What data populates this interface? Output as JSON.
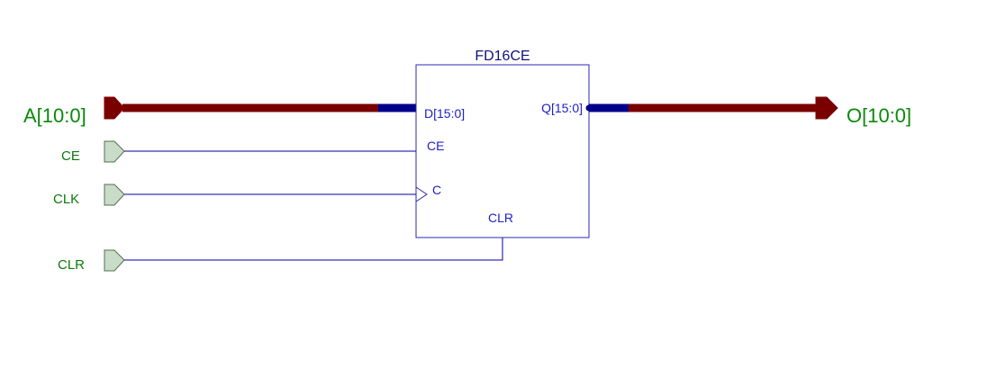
{
  "component": {
    "name": "FD16CE",
    "pins": {
      "d": "D[15:0]",
      "ce": "CE",
      "c": "C",
      "clr": "CLR",
      "q": "Q[15:0]"
    }
  },
  "inputs": {
    "a_bus": "A[10:0]",
    "ce": "CE",
    "clk": "CLK",
    "clr": "CLR"
  },
  "outputs": {
    "o_bus": "O[10:0]"
  },
  "colors": {
    "bus": "#7a0000",
    "bus_pin": "#00008b",
    "wire": "#0000a0",
    "block_border": "#2828b4",
    "port_fill": "#c8dcc8",
    "port_stroke": "#507050",
    "port_label": "#0a8a0a",
    "pin_label": "#2020c8"
  }
}
